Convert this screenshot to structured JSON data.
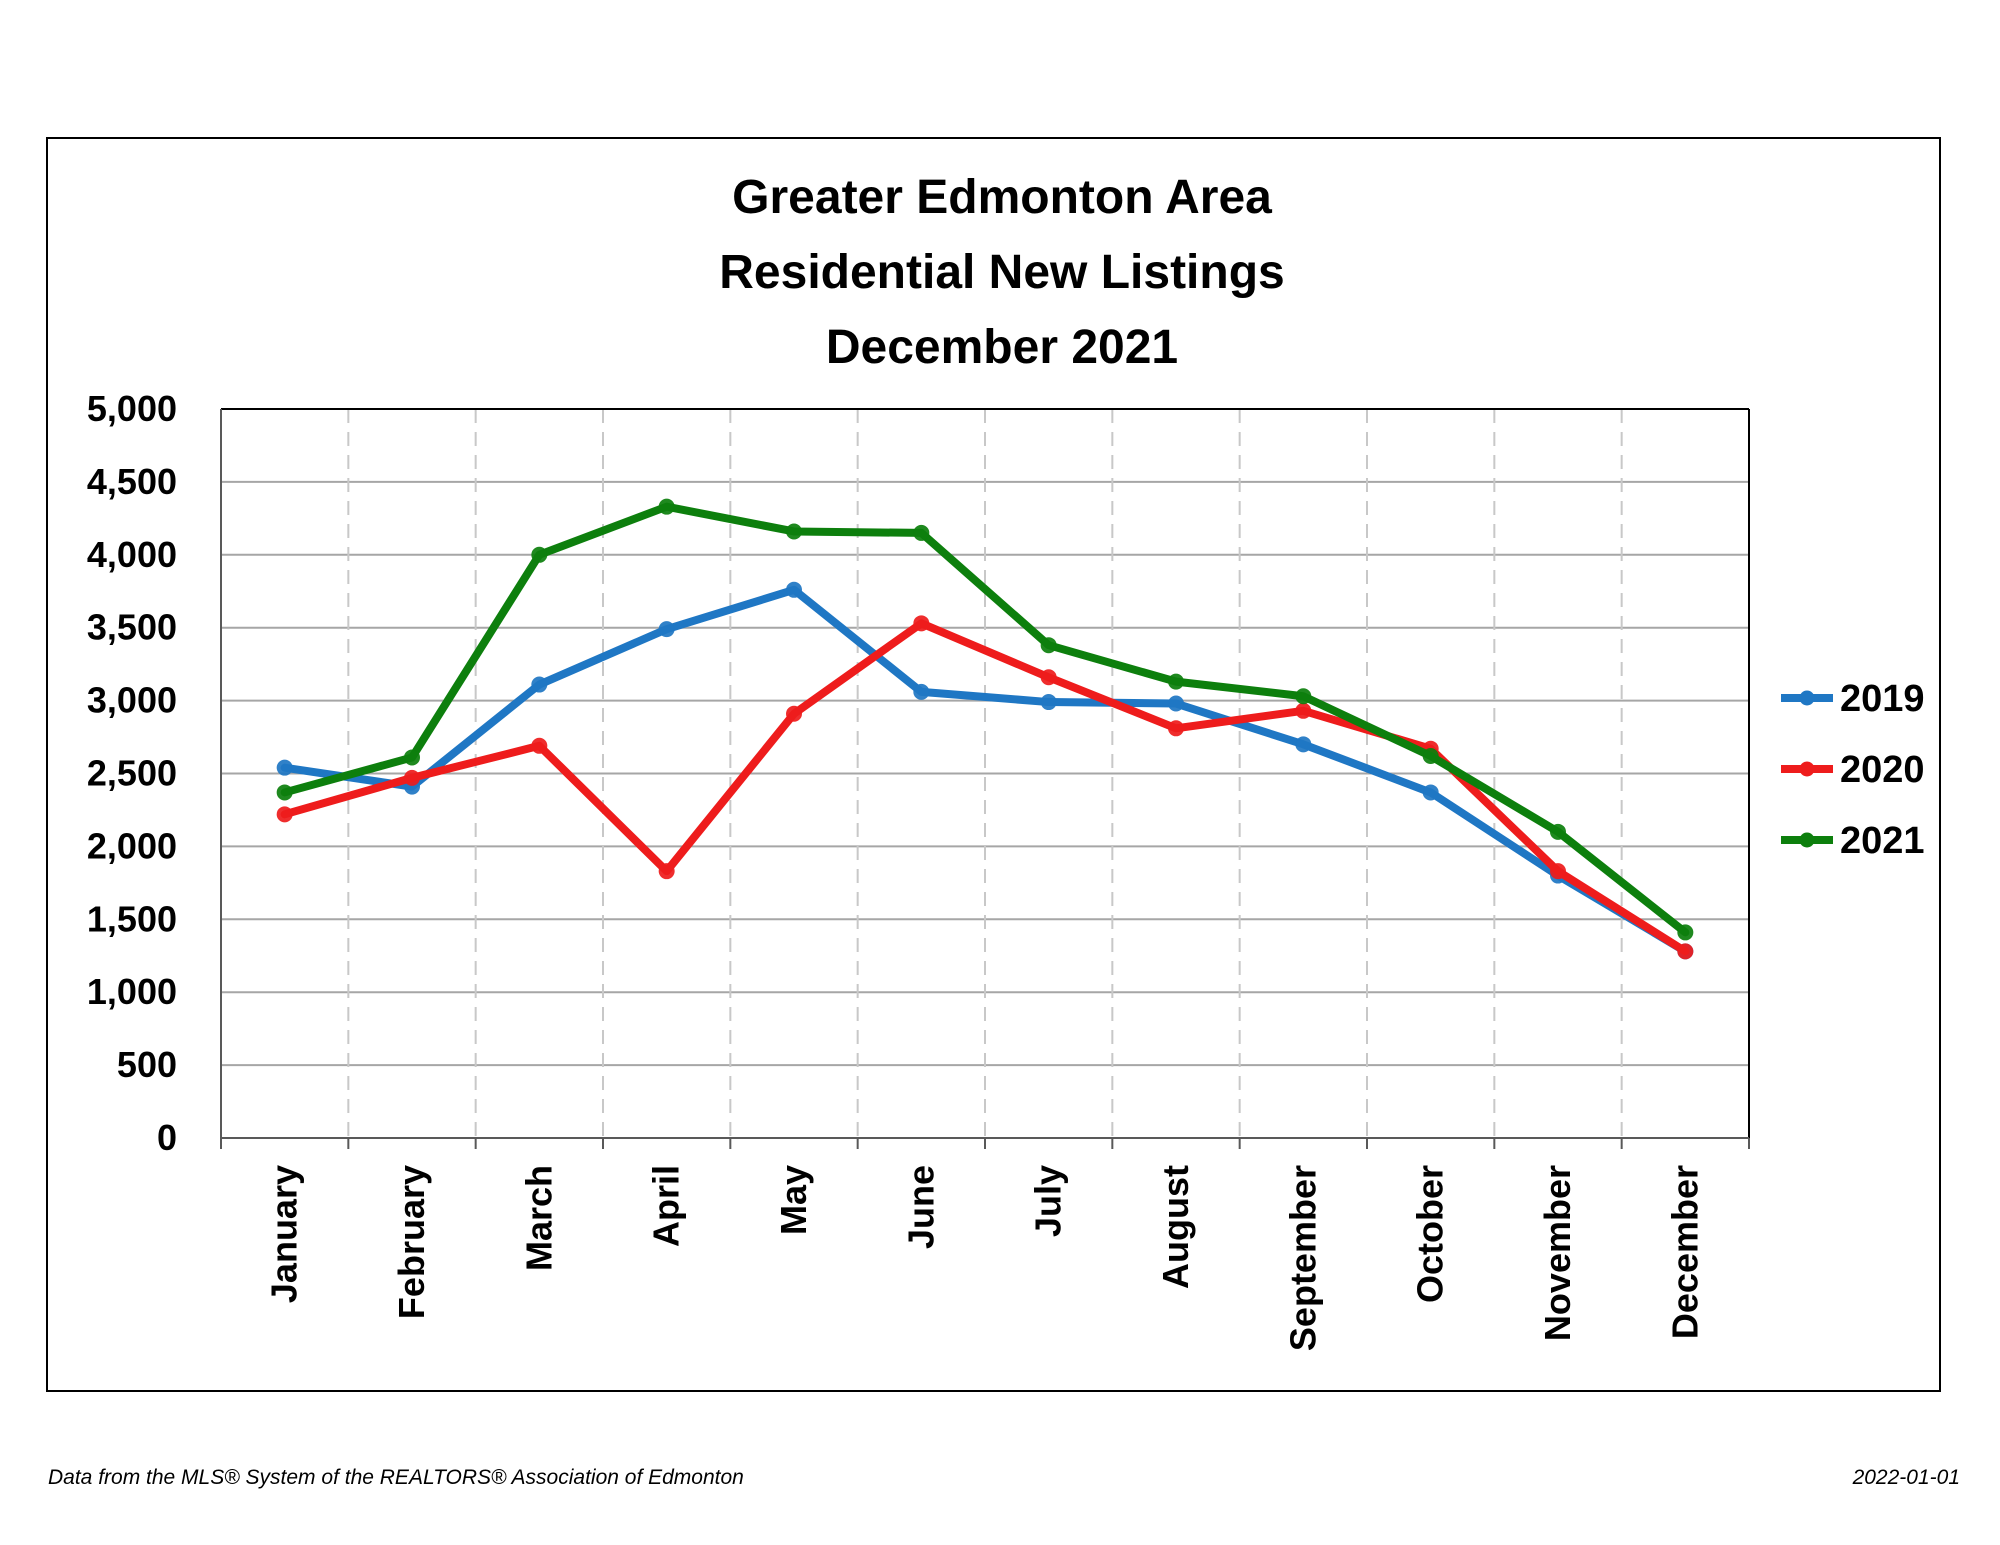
{
  "chart_data": {
    "type": "line",
    "title": [
      "Greater Edmonton Area",
      "Residential New Listings",
      "December 2021"
    ],
    "categories": [
      "January",
      "February",
      "March",
      "April",
      "May",
      "June",
      "July",
      "August",
      "September",
      "October",
      "November",
      "December"
    ],
    "yticks": [
      "0",
      "500",
      "1,000",
      "1,500",
      "2,000",
      "2,500",
      "3,000",
      "3,500",
      "4,000",
      "4,500",
      "5,000"
    ],
    "ylim": [
      0,
      5000
    ],
    "grid": {
      "horizontal": true,
      "vertical": "dashed"
    },
    "legend": "right",
    "series": [
      {
        "name": "2019",
        "color": "#1f77c4",
        "values": [
          2540,
          2410,
          3110,
          3490,
          3760,
          3060,
          2990,
          2980,
          2700,
          2370,
          1800,
          1280
        ]
      },
      {
        "name": "2020",
        "color": "#ee1c1c",
        "values": [
          2220,
          2470,
          2690,
          1830,
          2910,
          3530,
          3160,
          2810,
          2930,
          2670,
          1830,
          1280
        ]
      },
      {
        "name": "2021",
        "color": "#0d7f0d",
        "values": [
          2370,
          2610,
          4000,
          4330,
          4160,
          4150,
          3380,
          3130,
          3030,
          2620,
          2100,
          1410
        ]
      }
    ]
  },
  "footer": {
    "source": "Data from the MLS® System of the REALTORS® Association of Edmonton",
    "date": "2022-01-01"
  }
}
